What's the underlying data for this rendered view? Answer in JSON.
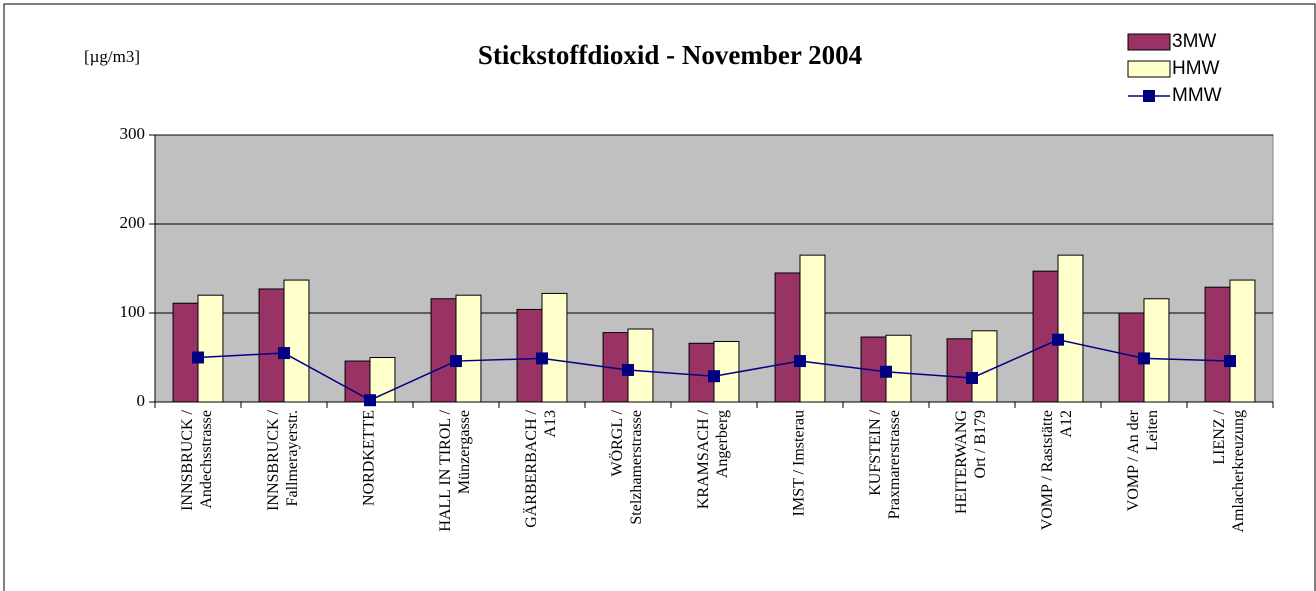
{
  "chart_data": {
    "type": "bar",
    "title": "Stickstoffdioxid - November 2004",
    "unit": "[µg/m3]",
    "categories": [
      [
        "INNSBRUCK /",
        "Andechsstrasse"
      ],
      [
        "INNSBRUCK /",
        "Fallmerayerstr."
      ],
      [
        "NORDKETTE"
      ],
      [
        "HALL IN TIROL /",
        "Münzergasse"
      ],
      [
        "GÄRBERBACH /",
        "A13"
      ],
      [
        "WÖRGL /",
        "Stelzhamerstrasse"
      ],
      [
        "KRAMSACH /",
        "Angerberg"
      ],
      [
        "IMST / Imsterau"
      ],
      [
        "KUFSTEIN /",
        "Praxmarerstrasse"
      ],
      [
        "HEITERWANG",
        "Ort / B179"
      ],
      [
        "VOMP / Raststätte",
        "A12"
      ],
      [
        "VOMP / An der",
        "Leiten"
      ],
      [
        "LIENZ /",
        "Amlacherkreuzung"
      ]
    ],
    "series": [
      {
        "name": "3MW",
        "type": "bar",
        "color": "#993366",
        "values": [
          111,
          127,
          46,
          116,
          104,
          78,
          66,
          145,
          73,
          71,
          147,
          100,
          129
        ]
      },
      {
        "name": "HMW",
        "type": "bar",
        "color": "#ffffcc",
        "values": [
          120,
          137,
          50,
          120,
          122,
          82,
          68,
          165,
          75,
          80,
          165,
          116,
          137
        ]
      },
      {
        "name": "MMW",
        "type": "line",
        "color": "#000080",
        "values": [
          50,
          55,
          2,
          46,
          49,
          36,
          29,
          46,
          34,
          27,
          70,
          49,
          46
        ]
      }
    ],
    "ylim": [
      0,
      300
    ],
    "yticks": [
      0,
      100,
      200,
      300
    ],
    "grid": true,
    "plot_background": "#c0c0c0",
    "legend": "top-right"
  }
}
